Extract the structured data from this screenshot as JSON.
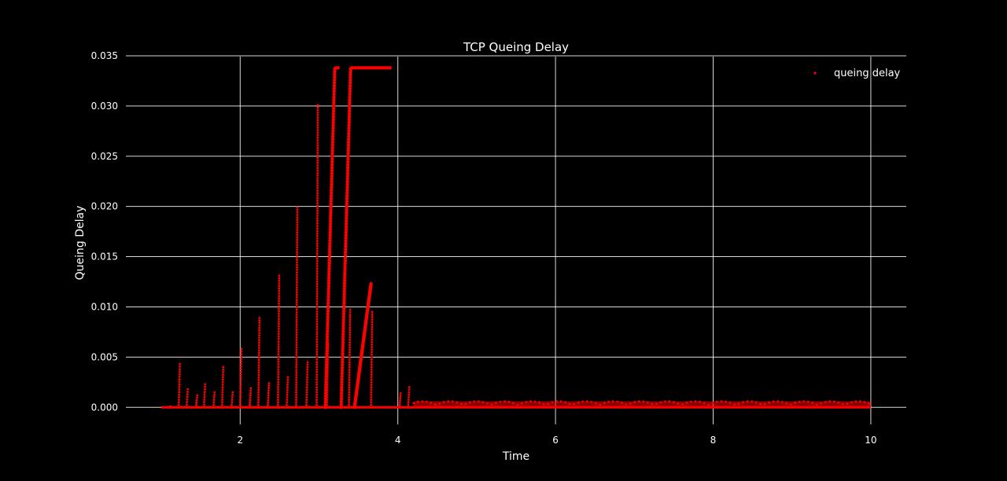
{
  "chart_data": {
    "type": "scatter",
    "title": "TCP Queing Delay",
    "xlabel": "Time",
    "ylabel": "Queing Delay",
    "xlim": [
      0.55,
      10.45
    ],
    "ylim": [
      -0.0017,
      0.0357
    ],
    "xticks": [
      2,
      4,
      6,
      8,
      10
    ],
    "xtick_labels": [
      "2",
      "4",
      "6",
      "8",
      "10"
    ],
    "yticks": [
      0.0,
      0.005,
      0.01,
      0.015,
      0.02,
      0.025,
      0.03,
      0.035
    ],
    "ytick_labels": [
      "0.000",
      "0.005",
      "0.010",
      "0.015",
      "0.020",
      "0.025",
      "0.030",
      "0.035"
    ],
    "grid": true,
    "legend": {
      "placement": "top-right",
      "entries": [
        "queing delay"
      ]
    },
    "colors": {
      "background": "#000000",
      "series": "#ff0000",
      "text": "#ffffff",
      "grid": "#ffffff"
    },
    "series": [
      {
        "name": "queing delay",
        "baseline": {
          "x_start": 1.0,
          "x_end": 10.0,
          "y": 0.0
        },
        "spikes": [
          {
            "x": 1.1,
            "peak": 0.0001
          },
          {
            "x": 1.22,
            "peak": 0.0043
          },
          {
            "x": 1.32,
            "peak": 0.0018
          },
          {
            "x": 1.44,
            "peak": 0.0012
          },
          {
            "x": 1.54,
            "peak": 0.0023
          },
          {
            "x": 1.66,
            "peak": 0.0015
          },
          {
            "x": 1.77,
            "peak": 0.004
          },
          {
            "x": 1.89,
            "peak": 0.0015
          },
          {
            "x": 2.0,
            "peak": 0.0058
          },
          {
            "x": 2.12,
            "peak": 0.0019
          },
          {
            "x": 2.23,
            "peak": 0.0089
          },
          {
            "x": 2.35,
            "peak": 0.0024
          },
          {
            "x": 2.48,
            "peak": 0.0131
          },
          {
            "x": 2.59,
            "peak": 0.003
          },
          {
            "x": 2.71,
            "peak": 0.0199
          },
          {
            "x": 2.84,
            "peak": 0.0045
          },
          {
            "x": 2.97,
            "peak": 0.0301
          },
          {
            "x": 3.1,
            "peak": 0.0063
          },
          {
            "x": 3.38,
            "peak": 0.0097
          },
          {
            "x": 3.66,
            "peak": 0.0095
          },
          {
            "x": 4.02,
            "peak": 0.0014
          },
          {
            "x": 4.13,
            "peak": 0.002
          }
        ],
        "ramps": [
          {
            "x_start": 3.08,
            "x_end": 3.2,
            "y_start": 0.0,
            "y_end": 0.0337
          },
          {
            "x_start": 3.28,
            "x_end": 3.4,
            "y_start": 0.0,
            "y_end": 0.0337
          },
          {
            "x_start": 3.45,
            "x_end": 3.66,
            "y_start": 0.0,
            "y_end": 0.0123
          }
        ],
        "plateaus": [
          {
            "x_start": 3.2,
            "x_end": 3.26,
            "y": 0.0338
          },
          {
            "x_start": 3.4,
            "x_end": 3.92,
            "y": 0.0338
          }
        ],
        "noise_band": {
          "x_start": 4.2,
          "x_end": 10.0,
          "y_max": 0.0006
        }
      }
    ]
  }
}
